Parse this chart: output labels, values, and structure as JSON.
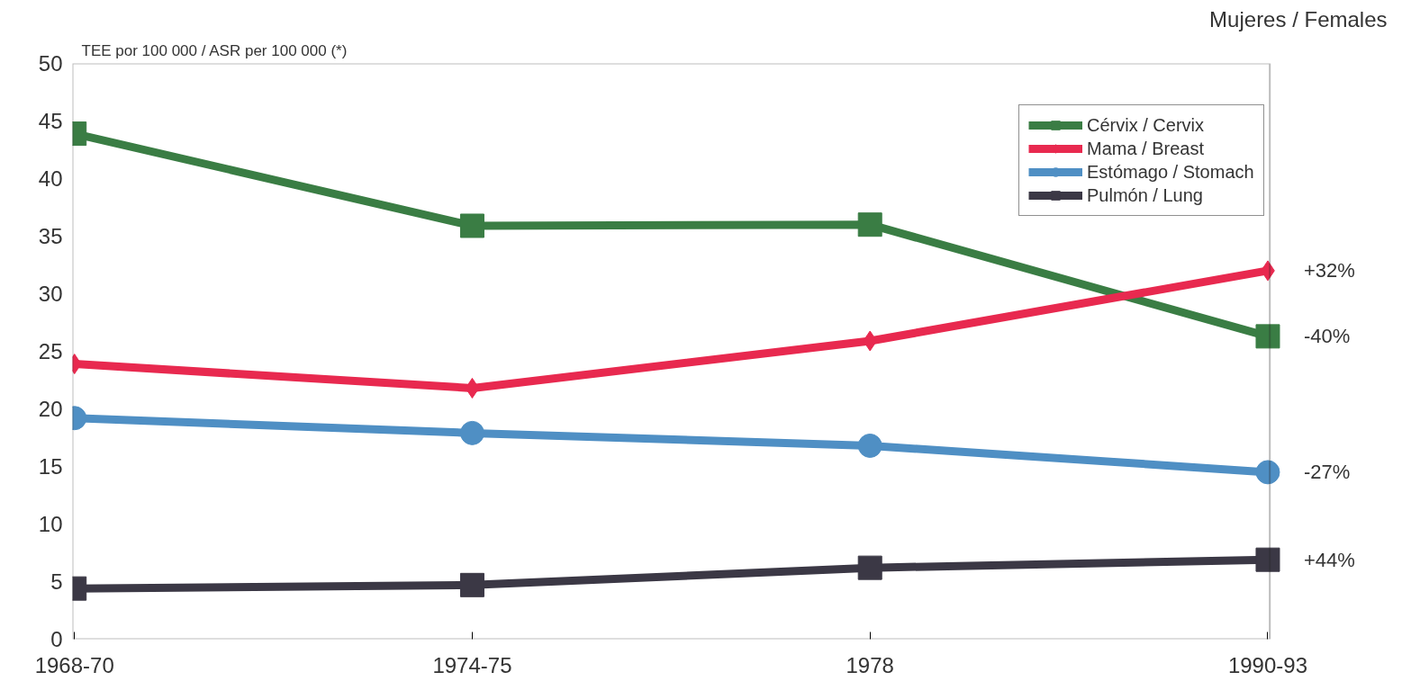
{
  "chart_data": {
    "type": "line",
    "title": "Mujeres / Females",
    "ylabel": "TEE por 100 000 / ASR per 100 000 (*)",
    "categories": [
      "1968-70",
      "1974-75",
      "1978",
      "1990-93"
    ],
    "series": [
      {
        "name": "Cérvix / Cervix",
        "color": "#3a7d44",
        "marker": "square",
        "values": [
          43.9,
          35.9,
          36.0,
          26.3
        ]
      },
      {
        "name": "Mama / Breast",
        "color": "#e8294f",
        "marker": "diamond",
        "values": [
          23.9,
          21.8,
          25.9,
          32.0
        ]
      },
      {
        "name": "Estómago / Stomach",
        "color": "#4f8fc4",
        "marker": "circle",
        "values": [
          19.2,
          17.9,
          16.8,
          14.5
        ]
      },
      {
        "name": "Pulmón / Lung",
        "color": "#3b3845",
        "marker": "square",
        "values": [
          4.4,
          4.7,
          6.2,
          6.9
        ]
      }
    ],
    "annotations": [
      {
        "text": "+32%",
        "x": "1990-93",
        "y": 32.0
      },
      {
        "text": "-40%",
        "x": "1990-93",
        "y": 26.3
      },
      {
        "text": "-27%",
        "x": "1990-93",
        "y": 14.5
      },
      {
        "text": "+44%",
        "x": "1990-93",
        "y": 6.9
      }
    ],
    "ylim": [
      0,
      50
    ],
    "yticks": [
      0,
      5,
      10,
      15,
      20,
      25,
      30,
      35,
      40,
      45,
      50
    ],
    "grid": false,
    "legend": "top right",
    "line_style": "solid"
  }
}
